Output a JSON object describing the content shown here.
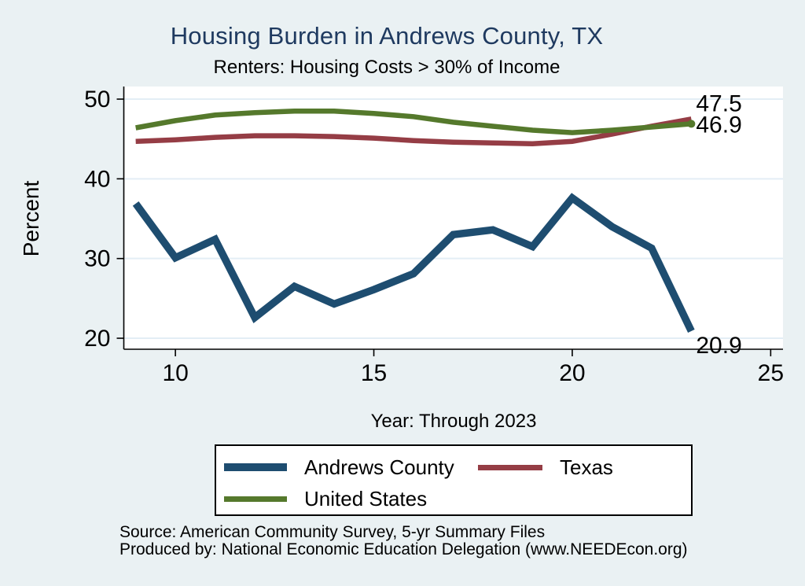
{
  "title": "Housing Burden in Andrews County, TX",
  "subtitle": "Renters: Housing Costs > 30% of Income",
  "colors": {
    "background": "#eaf1f3",
    "plot_background": "#ffffff",
    "grid": "#e3eef5",
    "axis": "#000000",
    "title_text": "#1f3a60",
    "label_text": "#000000"
  },
  "chart_data": {
    "type": "line",
    "title": "Housing Burden in Andrews County, TX",
    "subtitle": "Renters: Housing Costs > 30% of Income",
    "xlabel": "Year: Through 2023",
    "ylabel": "Percent",
    "x": [
      9,
      10,
      11,
      12,
      13,
      14,
      15,
      16,
      17,
      18,
      19,
      20,
      21,
      22,
      23
    ],
    "series": [
      {
        "name": "Andrews County",
        "color": "#1e4d70",
        "line_width": 9.5,
        "values": [
          36.9,
          30.1,
          32.4,
          22.6,
          26.5,
          24.3,
          26.1,
          28.1,
          33.0,
          33.6,
          31.5,
          37.6,
          34.0,
          31.3,
          20.9
        ],
        "end_label": "20.9",
        "end_marker": false
      },
      {
        "name": "Texas",
        "color": "#953d45",
        "line_width": 6.5,
        "values": [
          44.7,
          44.9,
          45.2,
          45.4,
          45.4,
          45.3,
          45.1,
          44.8,
          44.6,
          44.5,
          44.4,
          44.7,
          45.6,
          46.6,
          47.5
        ],
        "end_label": "47.5",
        "end_marker": false
      },
      {
        "name": "United States",
        "color": "#55792c",
        "line_width": 6.5,
        "values": [
          46.4,
          47.3,
          48.0,
          48.3,
          48.5,
          48.5,
          48.2,
          47.8,
          47.1,
          46.6,
          46.1,
          45.8,
          46.1,
          46.5,
          46.9
        ],
        "end_label": "46.9",
        "end_marker": true
      }
    ],
    "x_ticks": [
      10,
      15,
      20,
      25
    ],
    "y_ticks": [
      20,
      30,
      40,
      50
    ],
    "xlim": [
      8.7,
      25.31
    ],
    "ylim": [
      18.62,
      51.58
    ],
    "grid": "horizontal",
    "legend_position": "bottom"
  },
  "legend": {
    "items": [
      "Andrews County",
      "Texas",
      "United States"
    ]
  },
  "notes": {
    "source": "Source: American Community Survey, 5-yr Summary Files",
    "produced_by": "Produced by: National Economic Education Delegation (www.NEEDEcon.org)"
  }
}
